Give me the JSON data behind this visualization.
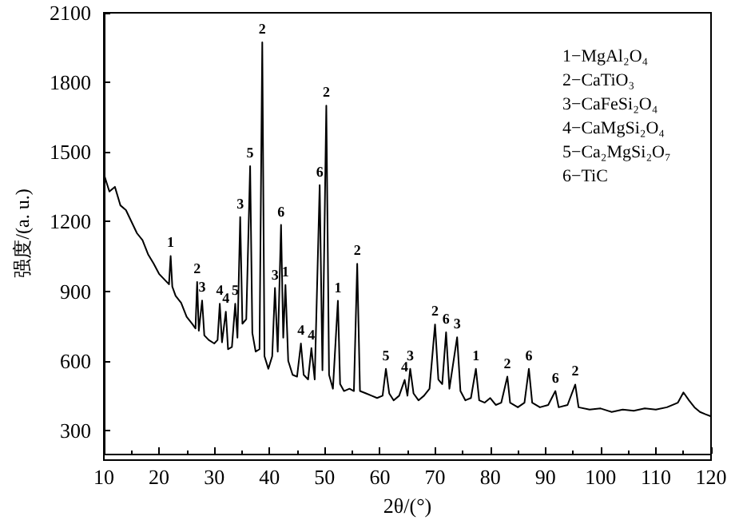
{
  "chart_data": {
    "type": "line",
    "xlabel": "2θ/(°)",
    "ylabel": "强度/(a. u.)",
    "xlim": [
      10,
      120
    ],
    "xticks": [
      10,
      20,
      30,
      40,
      50,
      60,
      70,
      80,
      90,
      100,
      110,
      120
    ],
    "ylim": [
      200,
      2100
    ],
    "yticks": [
      300,
      600,
      900,
      1200,
      1500,
      1800,
      2100
    ],
    "grid": false,
    "marker": "none",
    "line_style": "solid",
    "x": [
      10,
      11,
      12,
      13,
      14,
      15,
      16,
      17,
      18,
      19,
      20,
      21,
      21.8,
      22.1,
      22.4,
      23,
      24,
      25,
      26,
      26.6,
      26.9,
      27.2,
      27.8,
      28.2,
      29,
      30,
      30.6,
      31,
      31.4,
      32.1,
      32.5,
      33.2,
      33.8,
      34.2,
      34.7,
      35.1,
      35.8,
      36.5,
      36.9,
      37.5,
      38.2,
      38.7,
      39.1,
      39.8,
      40.5,
      41,
      41.5,
      42.1,
      42.5,
      42.9,
      43.4,
      44.2,
      45,
      45.7,
      46.2,
      47,
      47.6,
      48.2,
      49.1,
      49.6,
      50.3,
      50.8,
      51.5,
      52.4,
      52.8,
      53.5,
      54.5,
      55.3,
      55.9,
      56.4,
      57.5,
      58.5,
      59.5,
      60.5,
      61.1,
      61.7,
      62.5,
      63.5,
      64.5,
      65,
      65.5,
      66.1,
      67,
      68,
      69,
      70,
      70.6,
      71.3,
      72,
      72.6,
      74,
      74.6,
      75.5,
      76.5,
      77.4,
      78,
      79,
      80,
      81,
      82,
      83.1,
      83.6,
      85,
      86.2,
      87,
      87.6,
      89,
      90.5,
      91.8,
      92.4,
      94,
      95.4,
      96,
      98,
      100,
      102,
      104,
      106,
      108,
      110,
      112,
      114,
      115,
      116,
      117,
      118,
      119,
      120
    ],
    "series": [
      {
        "color": "#000000",
        "values": [
          1405,
          1330,
          1350,
          1270,
          1250,
          1200,
          1150,
          1120,
          1060,
          1020,
          975,
          950,
          930,
          1052,
          920,
          880,
          850,
          790,
          760,
          740,
          940,
          730,
          860,
          710,
          690,
          675,
          690,
          846,
          680,
          812,
          650,
          660,
          846,
          700,
          1220,
          760,
          780,
          1439,
          720,
          640,
          650,
          1973,
          620,
          566,
          620,
          914,
          640,
          1186,
          700,
          927,
          600,
          540,
          532,
          675,
          540,
          520,
          655,
          520,
          1357,
          560,
          1700,
          540,
          480,
          859,
          500,
          470,
          480,
          470,
          1018,
          470,
          460,
          450,
          440,
          450,
          566,
          460,
          430,
          450,
          518,
          450,
          566,
          460,
          430,
          450,
          480,
          757,
          520,
          500,
          723,
          480,
          702,
          470,
          430,
          440,
          566,
          430,
          420,
          440,
          410,
          420,
          532,
          420,
          400,
          420,
          566,
          420,
          400,
          410,
          470,
          400,
          410,
          498,
          400,
          390,
          395,
          380,
          390,
          385,
          395,
          390,
          400,
          420,
          464,
          430,
          400,
          380,
          370,
          361
        ]
      }
    ],
    "annotations": [
      {
        "text": "1",
        "x": 22.1,
        "y": 1052
      },
      {
        "text": "2",
        "x": 26.9,
        "y": 940
      },
      {
        "text": "3",
        "x": 27.8,
        "y": 860
      },
      {
        "text": "4",
        "x": 31,
        "y": 846
      },
      {
        "text": "4",
        "x": 32.1,
        "y": 812
      },
      {
        "text": "5",
        "x": 33.8,
        "y": 846
      },
      {
        "text": "3",
        "x": 34.7,
        "y": 1220
      },
      {
        "text": "5",
        "x": 36.5,
        "y": 1439
      },
      {
        "text": "2",
        "x": 38.7,
        "y": 1973
      },
      {
        "text": "3",
        "x": 41,
        "y": 914
      },
      {
        "text": "6",
        "x": 42.1,
        "y": 1186
      },
      {
        "text": "1",
        "x": 42.9,
        "y": 927
      },
      {
        "text": "4",
        "x": 45.7,
        "y": 675
      },
      {
        "text": "4",
        "x": 47.6,
        "y": 655
      },
      {
        "text": "6",
        "x": 49.1,
        "y": 1357
      },
      {
        "text": "2",
        "x": 50.3,
        "y": 1700
      },
      {
        "text": "1",
        "x": 52.4,
        "y": 859
      },
      {
        "text": "2",
        "x": 55.9,
        "y": 1018
      },
      {
        "text": "5",
        "x": 61.1,
        "y": 566
      },
      {
        "text": "4",
        "x": 64.5,
        "y": 518
      },
      {
        "text": "3",
        "x": 65.5,
        "y": 566
      },
      {
        "text": "2",
        "x": 70,
        "y": 757
      },
      {
        "text": "6",
        "x": 72,
        "y": 723
      },
      {
        "text": "3",
        "x": 74,
        "y": 702
      },
      {
        "text": "1",
        "x": 77.4,
        "y": 566
      },
      {
        "text": "2",
        "x": 83.1,
        "y": 532
      },
      {
        "text": "6",
        "x": 87,
        "y": 566
      },
      {
        "text": "6",
        "x": 91.8,
        "y": 470
      },
      {
        "text": "2",
        "x": 95.4,
        "y": 498
      },
      "1−MgAl₂O₄",
      "2−CaTiO₃",
      "3−CaFeSi₂O₄",
      "4−CaMgSi₂O₄",
      "5−Ca₂MgSi₂O₇",
      "6−TiC"
    ]
  }
}
